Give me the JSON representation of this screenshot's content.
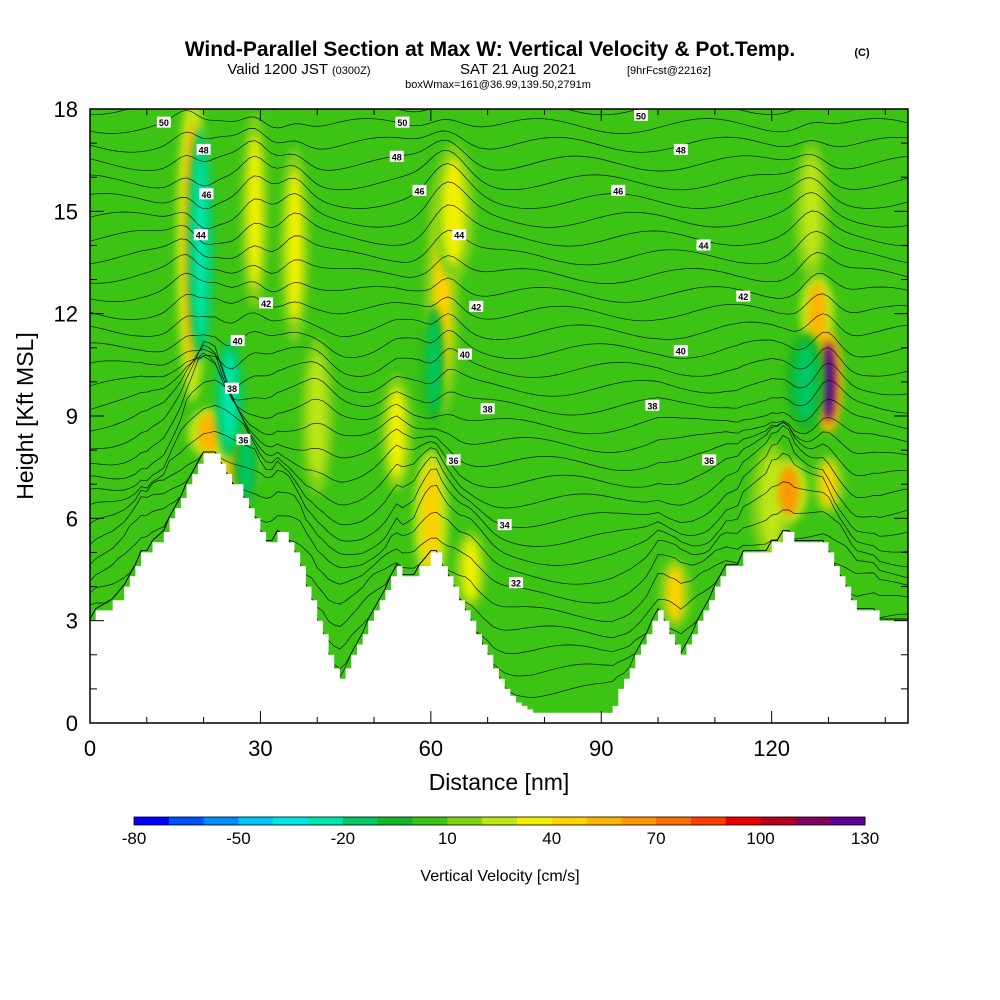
{
  "title": {
    "main": "Wind-Parallel Section at Max W: Vertical Velocity & Pot.Temp.",
    "copyright": "(C)",
    "valid_line_a": "Valid 1200 JST",
    "valid_line_b": "(0300Z)",
    "valid_line_c": "SAT 21 Aug 2021",
    "valid_line_d": "[9hrFcst@2216z]",
    "box_line": "boxWmax=161@36.99,139.50,2791m"
  },
  "chart_data": {
    "type": "heatmap",
    "xlabel": "Distance [nm]",
    "ylabel": "Height [Kft MSL]",
    "xlim": [
      0,
      144
    ],
    "ylim": [
      0,
      18
    ],
    "x_ticks": [
      "0",
      "30",
      "60",
      "90",
      "120"
    ],
    "x_tick_values": [
      0,
      30,
      60,
      90,
      120
    ],
    "y_ticks": [
      "0",
      "3",
      "6",
      "9",
      "12",
      "15",
      "18"
    ],
    "y_tick_values": [
      0,
      3,
      6,
      9,
      12,
      15,
      18
    ],
    "terrain_kft": {
      "x": [
        0,
        1,
        4,
        6,
        7,
        8,
        9,
        10,
        11,
        13,
        14,
        15,
        16,
        17,
        18,
        19,
        20,
        22,
        23,
        24,
        25,
        27,
        28,
        29,
        30,
        31,
        32,
        33,
        35,
        36,
        37,
        38,
        39,
        40,
        41,
        42,
        43,
        44,
        45,
        46,
        47,
        48,
        49,
        50,
        51,
        52,
        53,
        54,
        55,
        56,
        57,
        58,
        60,
        61,
        62,
        63,
        64,
        65,
        66,
        67,
        68,
        69,
        70,
        71,
        72,
        73,
        74,
        75,
        76,
        77,
        78,
        79,
        80,
        82,
        84,
        86,
        88,
        90,
        92,
        93,
        94,
        95,
        96,
        97,
        98,
        99,
        100,
        101,
        102,
        103,
        104,
        105,
        106,
        107,
        108,
        109,
        110,
        111,
        112,
        113,
        114,
        115,
        116,
        117,
        118,
        119,
        120,
        121,
        122,
        123,
        124,
        125,
        126,
        127,
        128,
        129,
        130,
        131,
        132,
        133,
        134,
        135,
        136,
        137,
        138,
        139,
        140,
        144
      ],
      "y": [
        3.0,
        3.3,
        3.6,
        4.0,
        4.3,
        4.6,
        5.0,
        5.0,
        5.3,
        5.6,
        6.0,
        6.3,
        6.6,
        7.0,
        7.3,
        7.6,
        7.9,
        7.9,
        7.6,
        7.3,
        7.0,
        6.6,
        6.3,
        6.0,
        5.6,
        5.3,
        5.3,
        5.6,
        5.3,
        5.0,
        4.6,
        4.0,
        3.6,
        3.0,
        2.6,
        2.0,
        1.6,
        1.3,
        1.6,
        2.0,
        2.3,
        2.6,
        3.0,
        3.3,
        3.6,
        3.9,
        4.3,
        4.6,
        4.3,
        4.3,
        4.3,
        4.6,
        5.0,
        5.0,
        4.6,
        4.3,
        4.0,
        3.6,
        3.3,
        3.0,
        2.6,
        2.3,
        2.0,
        1.6,
        1.3,
        1.0,
        0.8,
        0.6,
        0.5,
        0.4,
        0.3,
        0.3,
        0.3,
        0.3,
        0.3,
        0.3,
        0.3,
        0.3,
        0.5,
        1.0,
        1.3,
        1.6,
        2.0,
        2.3,
        2.6,
        3.0,
        3.3,
        3.0,
        2.6,
        2.3,
        2.0,
        2.3,
        2.6,
        3.0,
        3.3,
        3.6,
        4.0,
        4.3,
        4.6,
        4.6,
        4.6,
        5.0,
        5.0,
        5.0,
        5.0,
        5.0,
        5.3,
        5.3,
        5.6,
        5.6,
        5.3,
        5.3,
        5.3,
        5.3,
        5.3,
        5.3,
        5.0,
        4.6,
        4.3,
        4.0,
        3.6,
        3.3,
        3.3,
        3.3,
        3.3,
        3.0,
        3.0,
        3.0
      ]
    },
    "updrafts": [
      {
        "x": 18.0,
        "y": 14.0,
        "w": 1.5,
        "h": 8.0,
        "v": 50
      },
      {
        "x": 21.0,
        "y": 8.5,
        "w": 2.0,
        "h": 1.3,
        "v": 55
      },
      {
        "x": 26.0,
        "y": 7.5,
        "w": 2.0,
        "h": 1.8,
        "v": 50
      },
      {
        "x": 29.0,
        "y": 15.0,
        "w": 1.3,
        "h": 5.0,
        "v": 35
      },
      {
        "x": 36.0,
        "y": 14.0,
        "w": 1.4,
        "h": 5.0,
        "v": 35
      },
      {
        "x": 40.0,
        "y": 9.0,
        "w": 1.5,
        "h": 4.0,
        "v": 25
      },
      {
        "x": 54.0,
        "y": 8.5,
        "w": 1.5,
        "h": 3.0,
        "v": 30
      },
      {
        "x": 60.0,
        "y": 6.0,
        "w": 1.6,
        "h": 3.5,
        "v": 45
      },
      {
        "x": 62.0,
        "y": 12.5,
        "w": 1.6,
        "h": 6.0,
        "v": 40
      },
      {
        "x": 64.0,
        "y": 15.0,
        "w": 2.0,
        "h": 3.5,
        "v": 30
      },
      {
        "x": 67.0,
        "y": 4.5,
        "w": 1.5,
        "h": 2.0,
        "v": 30
      },
      {
        "x": 103.0,
        "y": 3.8,
        "w": 1.5,
        "h": 1.8,
        "v": 40
      },
      {
        "x": 120.0,
        "y": 6.5,
        "w": 2.0,
        "h": 3.0,
        "v": 25
      },
      {
        "x": 123.0,
        "y": 6.8,
        "w": 1.8,
        "h": 1.6,
        "v": 60
      },
      {
        "x": 128.0,
        "y": 12.0,
        "w": 1.6,
        "h": 2.0,
        "v": 50
      },
      {
        "x": 130.0,
        "y": 10.0,
        "w": 1.3,
        "h": 2.6,
        "v": 125
      },
      {
        "x": 130.0,
        "y": 7.0,
        "w": 1.5,
        "h": 1.5,
        "v": 40
      },
      {
        "x": 127.0,
        "y": 15.0,
        "w": 1.6,
        "h": 3.5,
        "v": 20
      }
    ],
    "downdrafts": [
      {
        "x": 19.5,
        "y": 14.0,
        "w": 1.2,
        "h": 6.0,
        "v": -30
      },
      {
        "x": 24.5,
        "y": 9.5,
        "w": 1.3,
        "h": 3.0,
        "v": -25
      },
      {
        "x": 27.5,
        "y": 7.5,
        "w": 1.2,
        "h": 2.0,
        "v": -20
      },
      {
        "x": 60.5,
        "y": 10.5,
        "w": 1.0,
        "h": 3.0,
        "v": -20
      },
      {
        "x": 126.0,
        "y": 10.0,
        "w": 1.8,
        "h": 2.5,
        "v": -15
      }
    ],
    "theta_labels": [
      {
        "text": "50",
        "x": 13,
        "y": 17.6
      },
      {
        "text": "50",
        "x": 55,
        "y": 17.6
      },
      {
        "text": "50",
        "x": 97,
        "y": 17.8
      },
      {
        "text": "48",
        "x": 20,
        "y": 16.8
      },
      {
        "text": "48",
        "x": 54,
        "y": 16.6
      },
      {
        "text": "48",
        "x": 104,
        "y": 16.8
      },
      {
        "text": "46",
        "x": 20.5,
        "y": 15.5
      },
      {
        "text": "46",
        "x": 58,
        "y": 15.6
      },
      {
        "text": "46",
        "x": 93,
        "y": 15.6
      },
      {
        "text": "44",
        "x": 19.5,
        "y": 14.3
      },
      {
        "text": "44",
        "x": 65,
        "y": 14.3
      },
      {
        "text": "44",
        "x": 108,
        "y": 14.0
      },
      {
        "text": "42",
        "x": 31,
        "y": 12.3
      },
      {
        "text": "42",
        "x": 68,
        "y": 12.2
      },
      {
        "text": "42",
        "x": 115,
        "y": 12.5
      },
      {
        "text": "40",
        "x": 26,
        "y": 11.2
      },
      {
        "text": "40",
        "x": 66,
        "y": 10.8
      },
      {
        "text": "40",
        "x": 104,
        "y": 10.9
      },
      {
        "text": "38",
        "x": 25,
        "y": 9.8
      },
      {
        "text": "38",
        "x": 70,
        "y": 9.2
      },
      {
        "text": "38",
        "x": 99,
        "y": 9.3
      },
      {
        "text": "36",
        "x": 27,
        "y": 8.3
      },
      {
        "text": "36",
        "x": 64,
        "y": 7.7
      },
      {
        "text": "36",
        "x": 109,
        "y": 7.7
      },
      {
        "text": "34",
        "x": 73,
        "y": 5.8
      },
      {
        "text": "32",
        "x": 75,
        "y": 4.1
      }
    ],
    "colorbar": {
      "label": "Vertical Velocity [cm/s]",
      "min": -80,
      "max": 130,
      "tick_labels": [
        "-80",
        "-50",
        "-20",
        "10",
        "40",
        "70",
        "100",
        "130"
      ],
      "tick_values": [
        -80,
        -50,
        -20,
        10,
        40,
        70,
        100,
        130
      ],
      "colors": [
        "#0000ff",
        "#0050ff",
        "#008cff",
        "#00c8ff",
        "#00e6e6",
        "#00e6aa",
        "#00c864",
        "#14b428",
        "#3cc314",
        "#82d214",
        "#bee614",
        "#f0f000",
        "#ffd200",
        "#ffb400",
        "#ff9600",
        "#ff6e00",
        "#ff3c00",
        "#e60000",
        "#b4001e",
        "#82005a",
        "#5a0096"
      ]
    }
  }
}
